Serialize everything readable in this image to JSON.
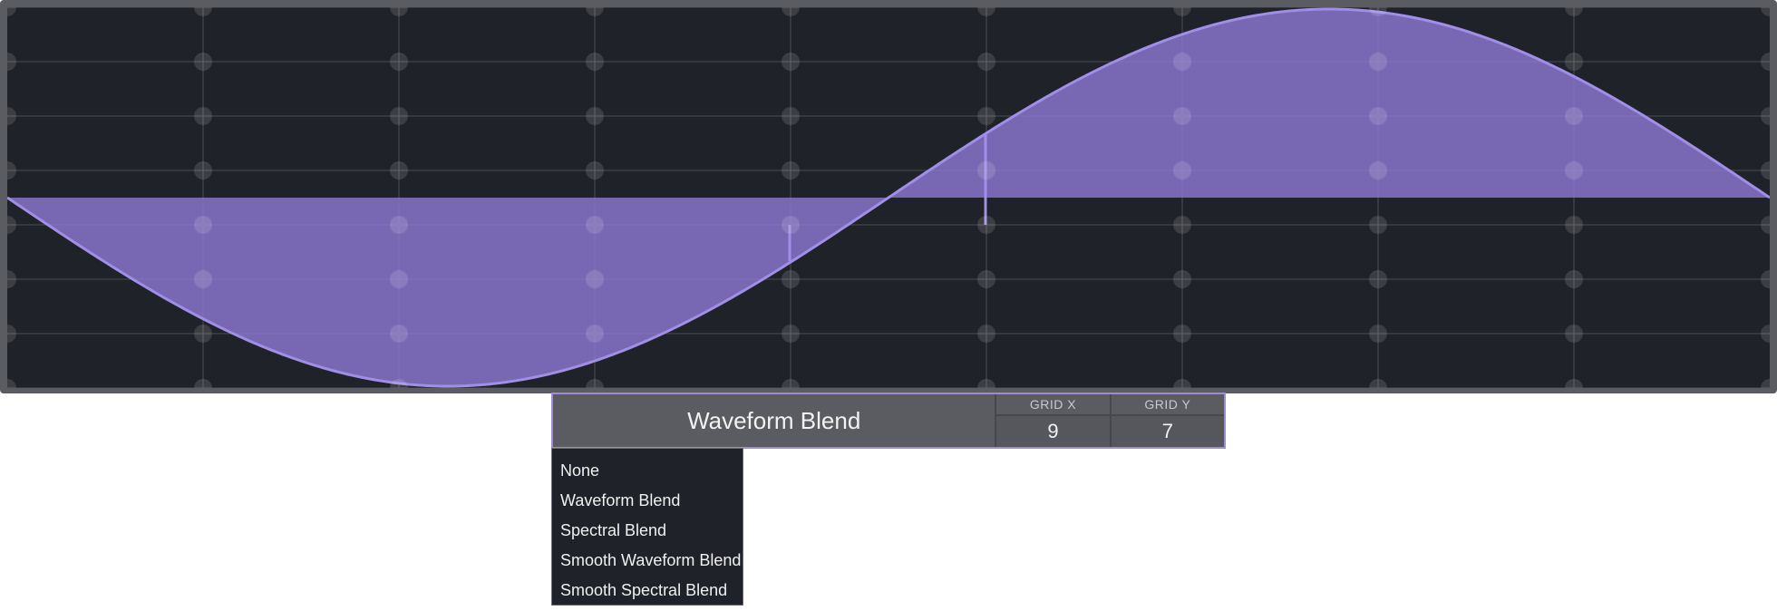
{
  "waveform": {
    "shape": "sine",
    "phase_shape": "negative half then positive half (one full cycle)",
    "grid_columns": 9,
    "grid_rows": 7,
    "fill_color": "#8c78d2",
    "line_color": "#a08ee8",
    "background_color": "#1f2228",
    "frame_color": "#5a5c61",
    "gridline_color": "#4a4d53"
  },
  "blend_panel": {
    "selected_mode": "Waveform Blend",
    "grid_x": {
      "label": "GRID X",
      "value": "9"
    },
    "grid_y": {
      "label": "GRID Y",
      "value": "7"
    },
    "accent_color": "#9d8bd6"
  },
  "dropdown": {
    "options": [
      "None",
      "Waveform Blend",
      "Spectral Blend",
      "Smooth Waveform Blend",
      "Smooth Spectral Blend"
    ]
  }
}
